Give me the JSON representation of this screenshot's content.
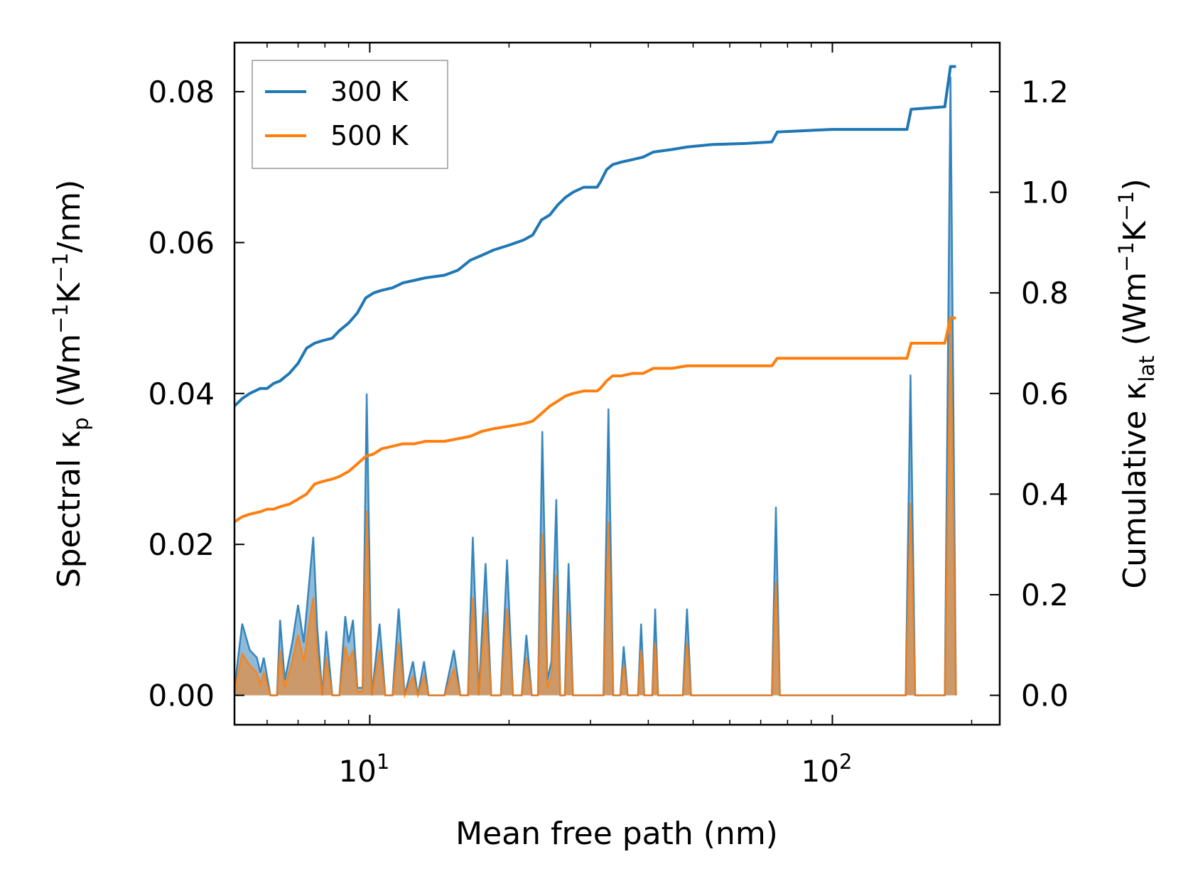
{
  "chart_data": {
    "type": "line",
    "x_scale": "log",
    "xlim": [
      5.1,
      230
    ],
    "ylim_left": [
      -0.0039,
      0.0865
    ],
    "ylim_right": [
      -0.0585,
      1.2975
    ],
    "xlabel": "Mean free path (nm)",
    "ylabel_left": {
      "prefix": "Spectral κ",
      "sub": "p",
      "units": " (Wm",
      "sup1": "−1",
      "mid": "K",
      "sup2": "−1",
      "end": "/nm)"
    },
    "ylabel_right": {
      "prefix": "Cumulative κ",
      "sub": "lat",
      "units": " (Wm",
      "sup1": "−1",
      "mid": "K",
      "sup2": "−1",
      "end": ")"
    },
    "x_ticks": [
      {
        "value": 10,
        "base": "10",
        "exp": "1"
      },
      {
        "value": 100,
        "base": "10",
        "exp": "2"
      }
    ],
    "y_ticks_left": [
      {
        "value": 0.0,
        "label": "0.00"
      },
      {
        "value": 0.02,
        "label": "0.02"
      },
      {
        "value": 0.04,
        "label": "0.04"
      },
      {
        "value": 0.06,
        "label": "0.06"
      },
      {
        "value": 0.08,
        "label": "0.08"
      }
    ],
    "y_ticks_right": [
      {
        "value": 0.0,
        "label": "0.0"
      },
      {
        "value": 0.2,
        "label": "0.2"
      },
      {
        "value": 0.4,
        "label": "0.4"
      },
      {
        "value": 0.6,
        "label": "0.6"
      },
      {
        "value": 0.8,
        "label": "0.8"
      },
      {
        "value": 1.0,
        "label": "1.0"
      },
      {
        "value": 1.2,
        "label": "1.2"
      }
    ],
    "legend": {
      "position": "upper-left",
      "entries": [
        {
          "label": "300 K",
          "color": "#1f77b4"
        },
        {
          "label": "500 K",
          "color": "#ff7f0e"
        }
      ]
    },
    "series": [
      {
        "name": "300 K",
        "color": "#1f77b4",
        "cumulative_axis": "right",
        "cumulative": [
          [
            5.1,
            0.575
          ],
          [
            5.3,
            0.59
          ],
          [
            5.5,
            0.6
          ],
          [
            5.8,
            0.61
          ],
          [
            6.0,
            0.61
          ],
          [
            6.2,
            0.62
          ],
          [
            6.4,
            0.625
          ],
          [
            6.7,
            0.64
          ],
          [
            7.0,
            0.66
          ],
          [
            7.3,
            0.69
          ],
          [
            7.6,
            0.7
          ],
          [
            7.9,
            0.705
          ],
          [
            8.3,
            0.71
          ],
          [
            8.6,
            0.725
          ],
          [
            9.0,
            0.74
          ],
          [
            9.4,
            0.76
          ],
          [
            9.8,
            0.79
          ],
          [
            10.2,
            0.8
          ],
          [
            10.6,
            0.805
          ],
          [
            11.2,
            0.81
          ],
          [
            11.8,
            0.82
          ],
          [
            12.5,
            0.825
          ],
          [
            13.2,
            0.83
          ],
          [
            14.5,
            0.835
          ],
          [
            15.5,
            0.845
          ],
          [
            16.5,
            0.865
          ],
          [
            17.5,
            0.875
          ],
          [
            18.5,
            0.885
          ],
          [
            20.0,
            0.895
          ],
          [
            21.5,
            0.905
          ],
          [
            22.5,
            0.915
          ],
          [
            23.5,
            0.945
          ],
          [
            24.5,
            0.955
          ],
          [
            25.5,
            0.975
          ],
          [
            26.5,
            0.99
          ],
          [
            27.5,
            1.0
          ],
          [
            29.0,
            1.01
          ],
          [
            31.0,
            1.01
          ],
          [
            31.5,
            1.02
          ],
          [
            32.5,
            1.045
          ],
          [
            33.5,
            1.055
          ],
          [
            35.0,
            1.06
          ],
          [
            37.0,
            1.065
          ],
          [
            39.0,
            1.07
          ],
          [
            41.0,
            1.08
          ],
          [
            45.0,
            1.085
          ],
          [
            48.5,
            1.09
          ],
          [
            55.0,
            1.095
          ],
          [
            65.0,
            1.097
          ],
          [
            74.0,
            1.1
          ],
          [
            76.0,
            1.12
          ],
          [
            100.0,
            1.125
          ],
          [
            145.0,
            1.125
          ],
          [
            148.0,
            1.165
          ],
          [
            175.0,
            1.17
          ],
          [
            180.0,
            1.25
          ],
          [
            185.0,
            1.25
          ]
        ],
        "spectral": [
          [
            5.1,
            0.001
          ],
          [
            5.3,
            0.0095
          ],
          [
            5.5,
            0.006
          ],
          [
            5.7,
            0.005
          ],
          [
            5.8,
            0.003
          ],
          [
            5.9,
            0.005
          ],
          [
            6.1,
            0.0
          ],
          [
            6.3,
            0.0
          ],
          [
            6.4,
            0.01
          ],
          [
            6.55,
            0.002
          ],
          [
            6.8,
            0.007
          ],
          [
            7.0,
            0.012
          ],
          [
            7.2,
            0.007
          ],
          [
            7.55,
            0.021
          ],
          [
            7.7,
            0.009
          ],
          [
            7.9,
            0.0
          ],
          [
            8.05,
            0.0085
          ],
          [
            8.3,
            0.0
          ],
          [
            8.6,
            0.0
          ],
          [
            8.85,
            0.0105
          ],
          [
            9.0,
            0.007
          ],
          [
            9.2,
            0.01
          ],
          [
            9.4,
            0.001
          ],
          [
            9.65,
            0.001
          ],
          [
            9.85,
            0.04
          ],
          [
            10.1,
            0.0
          ],
          [
            10.5,
            0.0095
          ],
          [
            10.8,
            0.0
          ],
          [
            11.2,
            0.0
          ],
          [
            11.55,
            0.0115
          ],
          [
            11.9,
            0.0
          ],
          [
            12.4,
            0.0045
          ],
          [
            12.7,
            0.0
          ],
          [
            13.1,
            0.0045
          ],
          [
            13.4,
            0.0
          ],
          [
            14.5,
            0.0
          ],
          [
            15.2,
            0.006
          ],
          [
            15.7,
            0.0
          ],
          [
            16.3,
            0.0
          ],
          [
            16.7,
            0.021
          ],
          [
            17.2,
            0.0
          ],
          [
            17.8,
            0.0175
          ],
          [
            18.3,
            0.0
          ],
          [
            19.2,
            0.0
          ],
          [
            19.8,
            0.018
          ],
          [
            20.4,
            0.0
          ],
          [
            21.3,
            0.0
          ],
          [
            21.8,
            0.008
          ],
          [
            22.4,
            0.0
          ],
          [
            23.1,
            0.0
          ],
          [
            23.6,
            0.035
          ],
          [
            24.2,
            0.002
          ],
          [
            24.7,
            0.0045
          ],
          [
            25.3,
            0.026
          ],
          [
            25.8,
            0.0
          ],
          [
            26.4,
            0.0
          ],
          [
            26.9,
            0.0175
          ],
          [
            27.5,
            0.0
          ],
          [
            29.5,
            0.0
          ],
          [
            32.0,
            0.0
          ],
          [
            32.8,
            0.038
          ],
          [
            33.6,
            0.0
          ],
          [
            34.8,
            0.0
          ],
          [
            35.4,
            0.0065
          ],
          [
            36.1,
            0.0
          ],
          [
            38.0,
            0.0
          ],
          [
            38.6,
            0.0095
          ],
          [
            39.2,
            0.0
          ],
          [
            40.8,
            0.0
          ],
          [
            41.4,
            0.0115
          ],
          [
            42.0,
            0.0
          ],
          [
            47.5,
            0.0
          ],
          [
            48.5,
            0.0115
          ],
          [
            49.5,
            0.0
          ],
          [
            74.0,
            0.0
          ],
          [
            75.5,
            0.025
          ],
          [
            77.0,
            0.0
          ],
          [
            144.0,
            0.0
          ],
          [
            147.5,
            0.0425
          ],
          [
            151.0,
            0.0
          ],
          [
            175.0,
            0.0
          ],
          [
            180.0,
            0.082
          ],
          [
            185.0,
            0.0
          ]
        ]
      },
      {
        "name": "500 K",
        "color": "#ff7f0e",
        "cumulative_axis": "right",
        "cumulative": [
          [
            5.1,
            0.345
          ],
          [
            5.3,
            0.355
          ],
          [
            5.5,
            0.36
          ],
          [
            5.8,
            0.365
          ],
          [
            6.0,
            0.37
          ],
          [
            6.2,
            0.37
          ],
          [
            6.4,
            0.375
          ],
          [
            6.7,
            0.38
          ],
          [
            7.0,
            0.39
          ],
          [
            7.3,
            0.4
          ],
          [
            7.6,
            0.42
          ],
          [
            7.9,
            0.425
          ],
          [
            8.3,
            0.43
          ],
          [
            8.6,
            0.435
          ],
          [
            9.0,
            0.445
          ],
          [
            9.4,
            0.46
          ],
          [
            9.8,
            0.475
          ],
          [
            10.2,
            0.48
          ],
          [
            10.6,
            0.49
          ],
          [
            11.2,
            0.495
          ],
          [
            11.8,
            0.5
          ],
          [
            12.5,
            0.5
          ],
          [
            13.2,
            0.505
          ],
          [
            14.5,
            0.505
          ],
          [
            15.5,
            0.51
          ],
          [
            16.5,
            0.515
          ],
          [
            17.5,
            0.525
          ],
          [
            18.5,
            0.53
          ],
          [
            20.0,
            0.535
          ],
          [
            21.5,
            0.54
          ],
          [
            22.5,
            0.545
          ],
          [
            23.5,
            0.56
          ],
          [
            24.5,
            0.575
          ],
          [
            25.5,
            0.585
          ],
          [
            26.5,
            0.595
          ],
          [
            27.5,
            0.6
          ],
          [
            29.0,
            0.605
          ],
          [
            31.0,
            0.605
          ],
          [
            31.5,
            0.61
          ],
          [
            32.5,
            0.625
          ],
          [
            33.5,
            0.635
          ],
          [
            35.0,
            0.635
          ],
          [
            37.0,
            0.64
          ],
          [
            39.0,
            0.64
          ],
          [
            41.0,
            0.65
          ],
          [
            45.0,
            0.65
          ],
          [
            48.5,
            0.655
          ],
          [
            55.0,
            0.655
          ],
          [
            65.0,
            0.655
          ],
          [
            74.0,
            0.655
          ],
          [
            76.0,
            0.67
          ],
          [
            100.0,
            0.67
          ],
          [
            145.0,
            0.67
          ],
          [
            148.0,
            0.7
          ],
          [
            175.0,
            0.7
          ],
          [
            180.0,
            0.75
          ],
          [
            185.0,
            0.75
          ]
        ],
        "spectral": [
          [
            5.1,
            0.0005
          ],
          [
            5.3,
            0.0055
          ],
          [
            5.5,
            0.004
          ],
          [
            5.7,
            0.003
          ],
          [
            5.8,
            0.0015
          ],
          [
            5.9,
            0.003
          ],
          [
            6.1,
            0.0
          ],
          [
            6.3,
            0.0
          ],
          [
            6.4,
            0.006
          ],
          [
            6.55,
            0.001
          ],
          [
            6.8,
            0.0045
          ],
          [
            7.0,
            0.008
          ],
          [
            7.2,
            0.0045
          ],
          [
            7.55,
            0.013
          ],
          [
            7.7,
            0.0055
          ],
          [
            7.9,
            0.0
          ],
          [
            8.05,
            0.005
          ],
          [
            8.3,
            0.0
          ],
          [
            8.6,
            0.0
          ],
          [
            8.85,
            0.0065
          ],
          [
            9.0,
            0.0045
          ],
          [
            9.2,
            0.006
          ],
          [
            9.4,
            0.0005
          ],
          [
            9.65,
            0.0005
          ],
          [
            9.85,
            0.0245
          ],
          [
            10.1,
            0.0
          ],
          [
            10.5,
            0.006
          ],
          [
            10.8,
            0.0
          ],
          [
            11.2,
            0.0
          ],
          [
            11.55,
            0.007
          ],
          [
            11.9,
            0.0
          ],
          [
            12.4,
            0.0025
          ],
          [
            12.7,
            0.0
          ],
          [
            13.1,
            0.0025
          ],
          [
            13.4,
            0.0
          ],
          [
            14.5,
            0.0
          ],
          [
            15.2,
            0.0035
          ],
          [
            15.7,
            0.0
          ],
          [
            16.3,
            0.0
          ],
          [
            16.7,
            0.013
          ],
          [
            17.2,
            0.0
          ],
          [
            17.8,
            0.011
          ],
          [
            18.3,
            0.0
          ],
          [
            19.2,
            0.0
          ],
          [
            19.8,
            0.0115
          ],
          [
            20.4,
            0.0
          ],
          [
            21.3,
            0.0
          ],
          [
            21.8,
            0.005
          ],
          [
            22.4,
            0.0
          ],
          [
            23.1,
            0.0
          ],
          [
            23.6,
            0.0215
          ],
          [
            24.2,
            0.001
          ],
          [
            24.7,
            0.0025
          ],
          [
            25.3,
            0.016
          ],
          [
            25.8,
            0.0
          ],
          [
            26.4,
            0.0
          ],
          [
            26.9,
            0.011
          ],
          [
            27.5,
            0.0
          ],
          [
            29.5,
            0.0
          ],
          [
            32.0,
            0.0
          ],
          [
            32.8,
            0.023
          ],
          [
            33.6,
            0.0
          ],
          [
            34.8,
            0.0
          ],
          [
            35.4,
            0.004
          ],
          [
            36.1,
            0.0
          ],
          [
            38.0,
            0.0
          ],
          [
            38.6,
            0.006
          ],
          [
            39.2,
            0.0
          ],
          [
            40.8,
            0.0
          ],
          [
            41.4,
            0.007
          ],
          [
            42.0,
            0.0
          ],
          [
            47.5,
            0.0
          ],
          [
            48.5,
            0.007
          ],
          [
            49.5,
            0.0
          ],
          [
            74.0,
            0.0
          ],
          [
            75.5,
            0.015
          ],
          [
            77.0,
            0.0
          ],
          [
            144.0,
            0.0
          ],
          [
            147.5,
            0.0255
          ],
          [
            151.0,
            0.0
          ],
          [
            175.0,
            0.0
          ],
          [
            180.0,
            0.05
          ],
          [
            185.0,
            0.0
          ]
        ]
      }
    ]
  }
}
